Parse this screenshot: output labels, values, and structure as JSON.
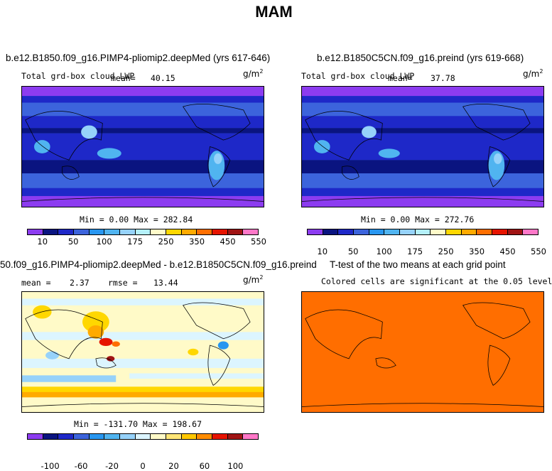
{
  "title": "MAM",
  "panels": {
    "tl": {
      "title": "b.e12.B1850.f09_g16.PIMP4-pliomip2.deepMed (yrs 617-646)",
      "variable": "Total grd-box cloud LWP",
      "mean_label": "mean=",
      "mean_value": "40.15",
      "units_base": "g/m",
      "units_exp": "2",
      "minmax": "Min =   0.00 Max = 282.84",
      "colorbar_ticks": [
        "10",
        "50",
        "100",
        "175",
        "250",
        "350",
        "450",
        "550"
      ]
    },
    "tr": {
      "title": "b.e12.B1850C5CN.f09_g16.preind (yrs 619-668)",
      "variable": "Total grd-box cloud LWP",
      "mean_label": "mean=",
      "mean_value": "37.78",
      "units_base": "g/m",
      "units_exp": "2",
      "minmax": "Min =   0.00 Max = 272.76",
      "colorbar_ticks": [
        "10",
        "50",
        "100",
        "175",
        "250",
        "350",
        "450",
        "550"
      ]
    },
    "bl": {
      "title": "50.f09_g16.PIMP4-pliomip2.deepMed - b.e12.B1850C5CN.f09_g16.preind",
      "mean_label": "mean =",
      "mean_value": "2.37",
      "rmse_label": "rmse =",
      "rmse_value": "13.44",
      "units_base": "g/m",
      "units_exp": "2",
      "minmax": "Min = -131.70 Max = 198.67",
      "colorbar_ticks": [
        "-100",
        "-60",
        "-20",
        "0",
        "20",
        "60",
        "100"
      ]
    },
    "br": {
      "title": "T-test of the two means at each grid point",
      "subtitle": "Colored cells are significant at the 0.05 level"
    }
  },
  "colors": {
    "abs_scale": [
      "#8c3cf0",
      "#0a1480",
      "#1e28c8",
      "#3c64dc",
      "#2896f0",
      "#50b4f0",
      "#96d2fa",
      "#b4f0fa",
      "#fffac8",
      "#ffd700",
      "#ffaa00",
      "#ff6e00",
      "#e61400",
      "#a01414",
      "#ff78c8"
    ],
    "diff_scale": [
      "#8c3cf0",
      "#0a1480",
      "#1e28c8",
      "#3c64dc",
      "#2896f0",
      "#50b4f0",
      "#96d2fa",
      "#dcf5ff",
      "#fffac8",
      "#ffe678",
      "#ffc800",
      "#ff8c00",
      "#e61400",
      "#a01414",
      "#ff78c8"
    ],
    "ttest_fill": "#ff6e00"
  }
}
